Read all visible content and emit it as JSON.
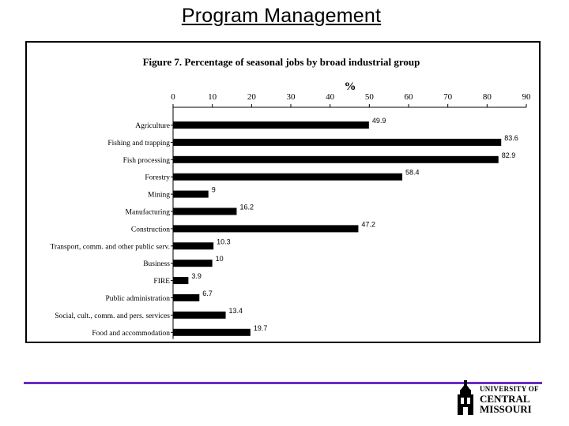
{
  "slide": {
    "title": "Program Management"
  },
  "chart_data": {
    "type": "bar",
    "orientation": "horizontal",
    "title": "Figure 7. Percentage of seasonal jobs by broad industrial group",
    "xlabel": "%",
    "xlim": [
      0,
      90
    ],
    "x_ticks": [
      0,
      10,
      20,
      30,
      40,
      50,
      60,
      70,
      80,
      90
    ],
    "categories": [
      "Agriculture",
      "Fishing and trapping",
      "Fish processing",
      "Forestry",
      "Mining",
      "Manufacturing",
      "Construction",
      "Transport, comm. and other public serv.",
      "Business",
      "FIRE",
      "Public administration",
      "Social, cult., comm. and pers. services",
      "Food and accommodation"
    ],
    "values": [
      49.9,
      83.6,
      82.9,
      58.4,
      9,
      16.2,
      47.2,
      10.3,
      10,
      3.9,
      6.7,
      13.4,
      19.7
    ],
    "value_labels": [
      "49.9",
      "83.6",
      "82.9",
      "58.4",
      "9",
      "16.2",
      "47.2",
      "10.3",
      "10",
      "3.9",
      "6.7",
      "13.4",
      "19.7"
    ],
    "bar_color": "#000000",
    "grid": false,
    "legend": "none"
  },
  "logo": {
    "line1": "UNIVERSITY OF",
    "line2": "CENTRAL",
    "line3": "MISSOURI"
  },
  "colors": {
    "divider": "#6a2bc5"
  }
}
